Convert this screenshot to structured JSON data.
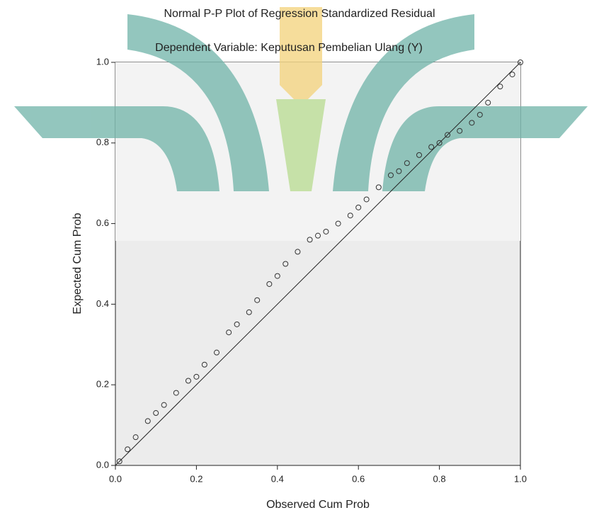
{
  "chart_data": {
    "type": "scatter",
    "title": "Normal P-P Plot of Regression Standardized Residual",
    "subtitle": "Dependent Variable: Keputusan Pembelian Ulang (Y)",
    "x_label": "Observed Cum Prob",
    "y_label": "Expected Cum Prob",
    "x": [
      0.01,
      0.03,
      0.05,
      0.08,
      0.1,
      0.12,
      0.15,
      0.18,
      0.2,
      0.22,
      0.25,
      0.28,
      0.3,
      0.33,
      0.35,
      0.38,
      0.4,
      0.42,
      0.45,
      0.48,
      0.5,
      0.52,
      0.55,
      0.58,
      0.6,
      0.62,
      0.65,
      0.68,
      0.7,
      0.72,
      0.75,
      0.78,
      0.8,
      0.82,
      0.85,
      0.88,
      0.9,
      0.92,
      0.95,
      0.98,
      1.0
    ],
    "values": [
      0.01,
      0.04,
      0.07,
      0.11,
      0.13,
      0.15,
      0.18,
      0.21,
      0.22,
      0.25,
      0.28,
      0.33,
      0.35,
      0.38,
      0.41,
      0.45,
      0.47,
      0.5,
      0.53,
      0.56,
      0.57,
      0.58,
      0.6,
      0.62,
      0.64,
      0.66,
      0.69,
      0.72,
      0.73,
      0.75,
      0.77,
      0.79,
      0.8,
      0.82,
      0.83,
      0.85,
      0.87,
      0.9,
      0.94,
      0.97,
      1.0
    ],
    "color": "#333333",
    "xlim": [
      0,
      1
    ],
    "ylim": [
      0,
      1
    ],
    "xticks": [
      {
        "value": 0,
        "label": "0.0"
      },
      {
        "value": 0.2,
        "label": "0.2"
      },
      {
        "value": 0.4,
        "label": "0.4"
      },
      {
        "value": 0.6,
        "label": "0.6"
      },
      {
        "value": 0.8,
        "label": "0.8"
      },
      {
        "value": 1,
        "label": "1.0"
      }
    ],
    "yticks": [
      {
        "value": 0,
        "label": "0.0"
      },
      {
        "value": 0.2,
        "label": "0.2"
      },
      {
        "value": 0.4,
        "label": "0.4"
      },
      {
        "value": 0.6,
        "label": "0.6"
      },
      {
        "value": 0.8,
        "label": "0.8"
      },
      {
        "value": 1,
        "label": "1.0"
      }
    ]
  }
}
